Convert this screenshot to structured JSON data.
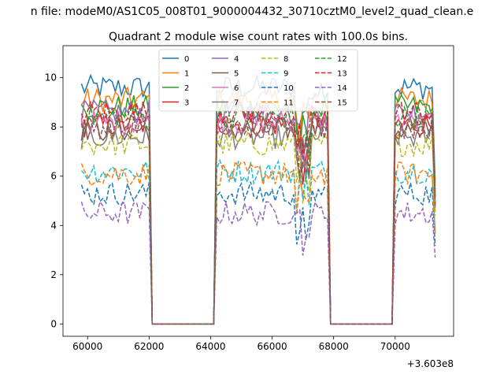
{
  "suptitle": "n file: modeM0/AS1C05_008T01_9000004432_30710cztM0_level2_quad_clean.e",
  "chart_data": {
    "type": "line",
    "title": "Quadrant 2 module wise count rates with 100.0s bins.",
    "xlabel": "",
    "ylabel": "",
    "offset_label": "+3.603e8",
    "xlim": [
      59200,
      71900
    ],
    "ylim": [
      -0.5,
      11.3
    ],
    "xticks": [
      60000,
      62000,
      64000,
      66000,
      68000,
      70000
    ],
    "xtick_labels": [
      "60000",
      "62000",
      "64000",
      "66000",
      "68000",
      "70000"
    ],
    "yticks": [
      0,
      2,
      4,
      6,
      8,
      10
    ],
    "ytick_labels": [
      "0",
      "2",
      "4",
      "6",
      "8",
      "10"
    ],
    "grid": false,
    "legend_position": "top-center",
    "bin_size": 100,
    "x_start": 59800,
    "segments": [
      {
        "x": [
          59800,
          62000
        ],
        "on": true
      },
      {
        "x": [
          62100,
          64100
        ],
        "on": false
      },
      {
        "x": [
          64200,
          67800
        ],
        "on": true
      },
      {
        "x": [
          67900,
          69900
        ],
        "on": false
      },
      {
        "x": [
          70000,
          71300
        ],
        "on": true
      }
    ],
    "series": [
      {
        "name": "0",
        "color": "#1f77b4",
        "dash": "solid",
        "level": 9.6
      },
      {
        "name": "1",
        "color": "#ff7f0e",
        "dash": "solid",
        "level": 9.1
      },
      {
        "name": "2",
        "color": "#2ca02c",
        "dash": "solid",
        "level": 8.8
      },
      {
        "name": "3",
        "color": "#d62728",
        "dash": "solid",
        "level": 8.1
      },
      {
        "name": "4",
        "color": "#9467bd",
        "dash": "solid",
        "level": 8.6
      },
      {
        "name": "5",
        "color": "#8c564b",
        "dash": "solid",
        "level": 7.9
      },
      {
        "name": "6",
        "color": "#e377c2",
        "dash": "solid",
        "level": 8.2
      },
      {
        "name": "7",
        "color": "#7f7f7f",
        "dash": "solid",
        "level": 7.6
      },
      {
        "name": "8",
        "color": "#bcbd22",
        "dash": "dashed",
        "level": 7.3
      },
      {
        "name": "9",
        "color": "#17becf",
        "dash": "dashed",
        "level": 6.2
      },
      {
        "name": "10",
        "color": "#1f77b4",
        "dash": "dashed",
        "level": 5.3
      },
      {
        "name": "11",
        "color": "#ff7f0e",
        "dash": "dashed",
        "level": 6.1
      },
      {
        "name": "12",
        "color": "#2ca02c",
        "dash": "dashed",
        "level": 8.4
      },
      {
        "name": "13",
        "color": "#d62728",
        "dash": "dashed",
        "level": 8.6
      },
      {
        "name": "14",
        "color": "#9467bd",
        "dash": "dashed",
        "level": 4.5
      },
      {
        "name": "15",
        "color": "#8c564b",
        "dash": "dashed",
        "level": 8.0
      }
    ]
  }
}
